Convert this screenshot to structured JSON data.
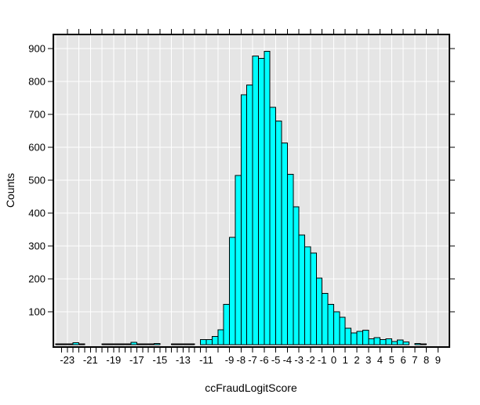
{
  "chart_data": {
    "type": "bar",
    "subtype": "histogram",
    "title": "",
    "xlabel": "ccFraudLogitScore",
    "ylabel": "Counts",
    "bin_start": -24,
    "bin_width": 0.5,
    "counts": [
      2,
      2,
      2,
      6,
      2,
      0,
      0,
      0,
      2,
      2,
      2,
      2,
      2,
      7,
      2,
      2,
      2,
      4,
      0,
      0,
      2,
      2,
      2,
      2,
      0,
      16,
      16,
      25,
      45,
      123,
      326,
      514,
      760,
      789,
      877,
      870,
      892,
      721,
      680,
      613,
      518,
      419,
      333,
      298,
      278,
      202,
      156,
      123,
      100,
      83,
      50,
      36,
      41,
      44,
      18,
      21,
      16,
      18,
      10,
      14,
      8,
      0,
      3,
      2,
      0,
      0,
      0,
      0
    ],
    "xlim": [
      -24.2,
      10
    ],
    "ylim": [
      0,
      943
    ],
    "grid": "on",
    "x_label_values": [
      -23,
      -21,
      -19,
      -17,
      -15,
      -13,
      -11,
      -9,
      -8,
      -7,
      -6,
      -5,
      -4,
      -3,
      -2,
      -1,
      0,
      1,
      2,
      3,
      4,
      5,
      6,
      7,
      8,
      9
    ],
    "x_tick_values": [
      -23.5,
      -23,
      -22.5,
      -22,
      -21.5,
      -21,
      -20.5,
      -20,
      -19.5,
      -19,
      -18.5,
      -18,
      -17.5,
      -17,
      -16.5,
      -16,
      -15.5,
      -15,
      -14.5,
      -14,
      -13.5,
      -13,
      -12.5,
      -12,
      -11.5,
      -11,
      -10,
      -9,
      -8,
      -7,
      -6,
      -5,
      -4,
      -3,
      -2,
      -1,
      0,
      1,
      2,
      3,
      4,
      5,
      6,
      7,
      8,
      9
    ],
    "x_top_tick_values": [
      -23,
      -22,
      -21,
      -20,
      -19,
      -18,
      -17,
      -16,
      -15,
      -14,
      -13,
      -12,
      -11,
      -10,
      -9,
      -8,
      -7,
      -6,
      -5,
      -4,
      -3,
      -2,
      -1,
      0,
      1,
      2,
      3,
      4,
      5,
      6,
      7,
      8,
      9
    ],
    "x_gridline_values": [
      -24,
      -23,
      -22,
      -21,
      -20,
      -19,
      -18,
      -17,
      -16,
      -15,
      -14,
      -13,
      -12,
      -11,
      -10,
      -9,
      -8,
      -7,
      -6,
      -5,
      -4,
      -3,
      -2,
      -1,
      0,
      1,
      2,
      3,
      4,
      5,
      6,
      7,
      8,
      9
    ],
    "y_tick_values": [
      100,
      200,
      300,
      400,
      500,
      600,
      700,
      800,
      900
    ]
  },
  "style": {
    "bar_fill": "#00ffff",
    "bar_stroke": "#000000",
    "panel_bg": "#e5e5e5",
    "grid_color": "#ffffff",
    "axis_color": "#000000",
    "text_color": "#000000",
    "figure_bg": "#ffffff"
  }
}
